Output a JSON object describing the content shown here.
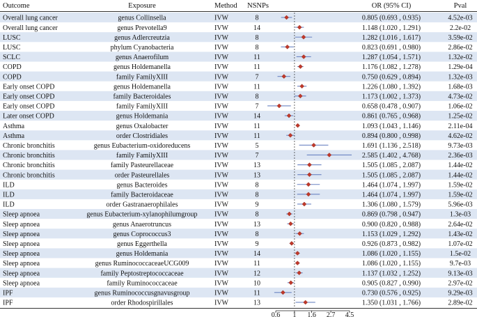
{
  "chart_data": {
    "type": "forest",
    "title": "",
    "columns": {
      "outcome": "Outcome",
      "exposure": "Exposure",
      "method": "Method",
      "nsnps": "NSNPs",
      "or": "OR (95% CI)",
      "pval": "Pval"
    },
    "x_axis": {
      "scale": "log",
      "ticks": [
        0.6,
        1,
        1.6,
        2.7,
        4.5
      ],
      "tick_labels": [
        "0.6",
        "1",
        "1.6",
        "2.7",
        "4.5"
      ],
      "xlim": [
        0.38,
        4.5
      ],
      "reference_line": 1
    },
    "rows": [
      {
        "outcome": "Overall lung cancer",
        "exposure": "genus Collinsella",
        "method": "IVW",
        "nsnps": "8",
        "or": 0.805,
        "lo": 0.693,
        "hi": 0.935,
        "or_text": "0.805 (0.693 , 0.935)",
        "pval": "4.52e-03"
      },
      {
        "outcome": "Overall lung cancer",
        "exposure": "genus Prevotella9",
        "method": "IVW",
        "nsnps": "14",
        "or": 1.148,
        "lo": 1.02,
        "hi": 1.291,
        "or_text": "1.148 (1.020 , 1.291)",
        "pval": "2.2e-02"
      },
      {
        "outcome": "LUSC",
        "exposure": "genus Adlercreutzia",
        "method": "IVW",
        "nsnps": "8",
        "or": 1.282,
        "lo": 1.016,
        "hi": 1.617,
        "or_text": "1.282 (1.016 , 1.617)",
        "pval": "3.59e-02"
      },
      {
        "outcome": "LUSC",
        "exposure": "phylum Cyanobacteria",
        "method": "IVW",
        "nsnps": "8",
        "or": 0.823,
        "lo": 0.691,
        "hi": 0.98,
        "or_text": "0.823 (0.691 , 0.980)",
        "pval": "2.86e-02"
      },
      {
        "outcome": "SCLC",
        "exposure": "genus Anaerofilum",
        "method": "IVW",
        "nsnps": "11",
        "or": 1.287,
        "lo": 1.054,
        "hi": 1.571,
        "or_text": "1.287 (1.054 , 1.571)",
        "pval": "1.32e-02"
      },
      {
        "outcome": "COPD",
        "exposure": "genus Holdemanella",
        "method": "IVW",
        "nsnps": "11",
        "or": 1.176,
        "lo": 1.082,
        "hi": 1.278,
        "or_text": "1.176 (1.082 , 1.278)",
        "pval": "1.29e-04"
      },
      {
        "outcome": "COPD",
        "exposure": "family FamilyXIII",
        "method": "IVW",
        "nsnps": "7",
        "or": 0.75,
        "lo": 0.629,
        "hi": 0.894,
        "or_text": "0.750 (0.629 , 0.894)",
        "pval": "1.32e-03"
      },
      {
        "outcome": "Early onset COPD",
        "exposure": "genus Holdemanella",
        "method": "IVW",
        "nsnps": "11",
        "or": 1.226,
        "lo": 1.08,
        "hi": 1.392,
        "or_text": "1.226 (1.080 , 1.392)",
        "pval": "1.68e-03"
      },
      {
        "outcome": "Early onset COPD",
        "exposure": "family Bacteroidales",
        "method": "IVW",
        "nsnps": "8",
        "or": 1.173,
        "lo": 1.002,
        "hi": 1.373,
        "or_text": "1.173 (1.002 , 1.373)",
        "pval": "4.73e-02"
      },
      {
        "outcome": "Early onset COPD",
        "exposure": "family FamilyXIII",
        "method": "IVW",
        "nsnps": "7",
        "or": 0.658,
        "lo": 0.478,
        "hi": 0.907,
        "or_text": "0.658 (0.478 , 0.907)",
        "pval": "1.06e-02"
      },
      {
        "outcome": "Later onset COPD",
        "exposure": "genus Holdemania",
        "method": "IVW",
        "nsnps": "14",
        "or": 0.861,
        "lo": 0.765,
        "hi": 0.968,
        "or_text": "0.861 (0.765 , 0.968)",
        "pval": "1.25e-02"
      },
      {
        "outcome": "Asthma",
        "exposure": "genus Oxalobacter",
        "method": "IVW",
        "nsnps": "11",
        "or": 1.093,
        "lo": 1.043,
        "hi": 1.146,
        "or_text": "1.093 (1.043 , 1.146)",
        "pval": "2.11e-04"
      },
      {
        "outcome": "Asthma",
        "exposure": "order Clostridiales",
        "method": "IVW",
        "nsnps": "11",
        "or": 0.894,
        "lo": 0.8,
        "hi": 0.998,
        "or_text": "0.894 (0.800 , 0.998)",
        "pval": "4.62e-02"
      },
      {
        "outcome": "Chronic bronchitis",
        "exposure": "genus  Eubacterium-oxidoreducens",
        "method": "IVW",
        "nsnps": "5",
        "or": 1.691,
        "lo": 1.136,
        "hi": 2.518,
        "or_text": "1.691 (1.136 , 2.518)",
        "pval": "9.73e-03"
      },
      {
        "outcome": "Chronic bronchitis",
        "exposure": "family FamilyXIII",
        "method": "IVW",
        "nsnps": "7",
        "or": 2.585,
        "lo": 1.402,
        "hi": 4.768,
        "or_text": "2.585 (1.402 , 4.768)",
        "pval": "2.36e-03"
      },
      {
        "outcome": "Chronic bronchitis",
        "exposure": "family Pasteurellaceae",
        "method": "IVW",
        "nsnps": "13",
        "or": 1.505,
        "lo": 1.085,
        "hi": 2.087,
        "or_text": "1.505 (1.085 , 2.087)",
        "pval": "1.44e-02"
      },
      {
        "outcome": "Chronic bronchitis",
        "exposure": "order Pasteurellales",
        "method": "IVW",
        "nsnps": "13",
        "or": 1.505,
        "lo": 1.085,
        "hi": 2.087,
        "or_text": "1.505 (1.085 , 2.087)",
        "pval": "1.44e-02"
      },
      {
        "outcome": "ILD",
        "exposure": "genus Bacteroides",
        "method": "IVW",
        "nsnps": "8",
        "or": 1.464,
        "lo": 1.074,
        "hi": 1.997,
        "or_text": "1.464 (1.074 , 1.997)",
        "pval": "1.59e-02"
      },
      {
        "outcome": "ILD",
        "exposure": "family Bacteroidaceae",
        "method": "IVW",
        "nsnps": "8",
        "or": 1.464,
        "lo": 1.074,
        "hi": 1.997,
        "or_text": "1.464 (1.074 , 1.997)",
        "pval": "1.59e-02"
      },
      {
        "outcome": "ILD",
        "exposure": "order Gastranaerophilales",
        "method": "IVW",
        "nsnps": "9",
        "or": 1.306,
        "lo": 1.08,
        "hi": 1.579,
        "or_text": "1.306 (1.080 , 1.579)",
        "pval": "5.96e-03"
      },
      {
        "outcome": "Sleep apnoea",
        "exposure": "genus  Eubacterium-xylanophilumgroup",
        "method": "IVW",
        "nsnps": "8",
        "or": 0.869,
        "lo": 0.798,
        "hi": 0.947,
        "or_text": "0.869 (0.798 , 0.947)",
        "pval": "1.3e-03"
      },
      {
        "outcome": "Sleep apnoea",
        "exposure": "genus Anaerotruncus",
        "method": "IVW",
        "nsnps": "13",
        "or": 0.9,
        "lo": 0.82,
        "hi": 0.988,
        "or_text": "0.900 (0.820 , 0.988)",
        "pval": "2.64e-02"
      },
      {
        "outcome": "Sleep apnoea",
        "exposure": "genus Coprococcus3",
        "method": "IVW",
        "nsnps": "8",
        "or": 1.153,
        "lo": 1.029,
        "hi": 1.292,
        "or_text": "1.153 (1.029 , 1.292)",
        "pval": "1.43e-02"
      },
      {
        "outcome": "Sleep apnoea",
        "exposure": "genus Eggerthella",
        "method": "IVW",
        "nsnps": "9",
        "or": 0.926,
        "lo": 0.873,
        "hi": 0.982,
        "or_text": "0.926 (0.873 , 0.982)",
        "pval": "1.07e-02"
      },
      {
        "outcome": "Sleep apnoea",
        "exposure": "genus Holdemania",
        "method": "IVW",
        "nsnps": "14",
        "or": 1.086,
        "lo": 1.02,
        "hi": 1.155,
        "or_text": "1.086 (1.020 , 1.155)",
        "pval": "1.5e-02"
      },
      {
        "outcome": "Sleep apnoea",
        "exposure": "genus RuminococcaceaeUCG009",
        "method": "IVW",
        "nsnps": "11",
        "or": 1.086,
        "lo": 1.02,
        "hi": 1.155,
        "or_text": "1.086 (1.020 , 1.155)",
        "pval": "9.7e-03"
      },
      {
        "outcome": "Sleep apnoea",
        "exposure": "family Peptostreptococcaceae",
        "method": "IVW",
        "nsnps": "12",
        "or": 1.137,
        "lo": 1.032,
        "hi": 1.252,
        "or_text": "1.137 (1.032 , 1.252)",
        "pval": "9.13e-03"
      },
      {
        "outcome": "Sleep apnoea",
        "exposure": "family Ruminococcaceae",
        "method": "IVW",
        "nsnps": "10",
        "or": 0.905,
        "lo": 0.827,
        "hi": 0.99,
        "or_text": "0.905 (0.827 , 0.990)",
        "pval": "2.97e-02"
      },
      {
        "outcome": "IPF",
        "exposure": "genus  Ruminococcusgnavusgroup",
        "method": "IVW",
        "nsnps": "11",
        "or": 0.73,
        "lo": 0.576,
        "hi": 0.925,
        "or_text": "0.730 (0.576 , 0.925)",
        "pval": "9.29e-03"
      },
      {
        "outcome": "IPF",
        "exposure": "order Rhodospirillales",
        "method": "IVW",
        "nsnps": "13",
        "or": 1.35,
        "lo": 1.031,
        "hi": 1.766,
        "or_text": "1.350 (1.031 , 1.766)",
        "pval": "2.89e-02"
      }
    ],
    "colors": {
      "stripe": "#dde6f3",
      "ci_line": "#6b84c2",
      "point": "#c0392b",
      "point_stroke": "#8e2a1f",
      "rule": "#333333",
      "ref_line": "#444444"
    }
  }
}
